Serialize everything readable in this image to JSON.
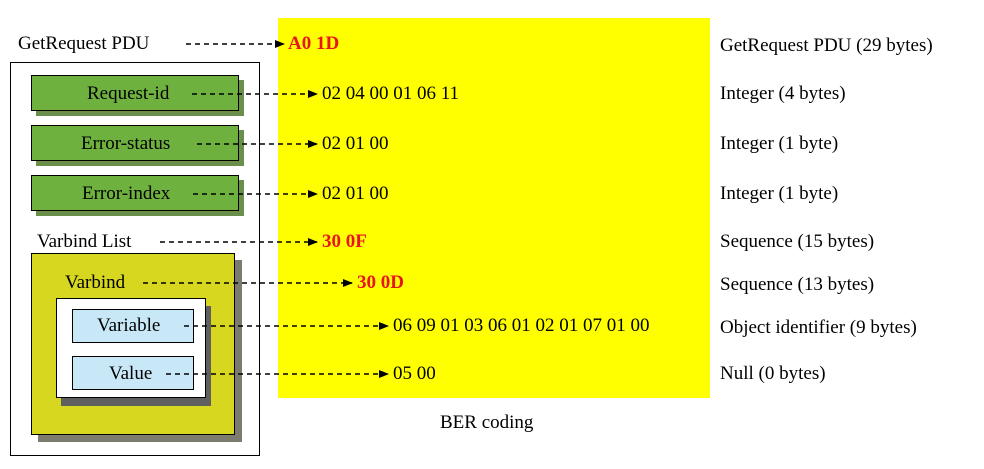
{
  "left": {
    "pdu_label": "GetRequest PDU",
    "request_id": "Request-id",
    "error_status": "Error-status",
    "error_index": "Error-index",
    "varbind_list": "Varbind List",
    "varbind": "Varbind",
    "variable": "Variable",
    "value": "Value"
  },
  "codes": {
    "pdu": "A0 1D",
    "request_id": "02 04 00 01 06 11",
    "error_status": "02 01 00",
    "error_index": "02 01 00",
    "varbind_list": "30 0F",
    "varbind": "30 0D",
    "variable": "06 09 01 03 06 01 02 01 07 01 00",
    "value": "05 00"
  },
  "right": {
    "pdu": "GetRequest PDU (29 bytes)",
    "request_id": "Integer (4 bytes)",
    "error_status": "Integer (1 byte)",
    "error_index": "Integer (1 byte)",
    "varbind_list": "Sequence (15 bytes)",
    "varbind": "Sequence (13 bytes)",
    "variable": "Object identifier (9 bytes)",
    "value": "Null (0 bytes)"
  },
  "caption": "BER coding",
  "colors": {
    "yellow_area": "#ffff00",
    "field_green": "#6fb13f",
    "varbind_olive": "#d7d720",
    "field_blue": "#c9e8f7",
    "highlight_red": "#e8151b"
  }
}
